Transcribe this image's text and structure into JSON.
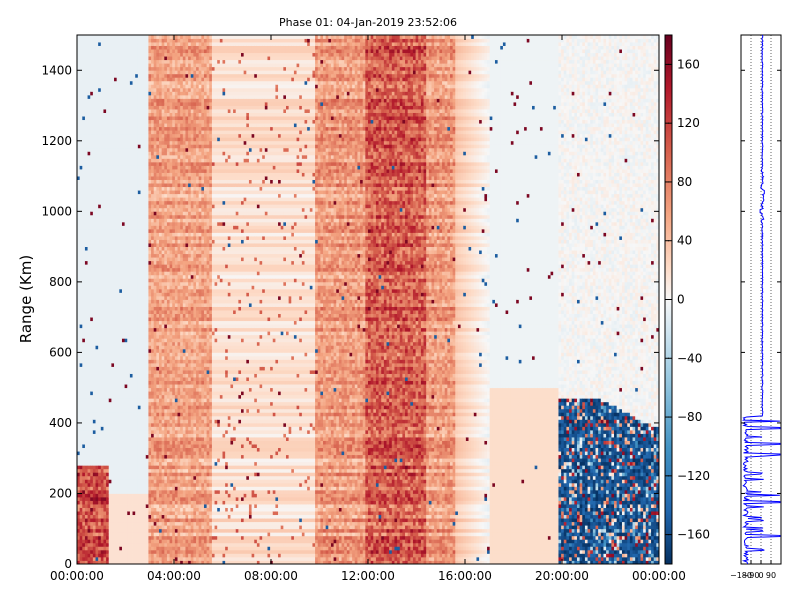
{
  "chart_data": [
    {
      "type": "heatmap",
      "title": "Phase 01: 04-Jan-2019 23:52:06",
      "ylabel": "Range (Km)",
      "xlabel": "",
      "x_tick_labels": [
        "00:00:00",
        "04:00:00",
        "08:00:00",
        "12:00:00",
        "16:00:00",
        "20:00:00",
        "00:00:00"
      ],
      "x_range_hours": [
        0,
        24
      ],
      "y_ticks": [
        0,
        200,
        400,
        600,
        800,
        1000,
        1200,
        1400
      ],
      "ylim": [
        0,
        1500
      ],
      "colormap": "RdBu_r",
      "clim": [
        -180,
        180
      ],
      "colorbar_ticks": [
        "160",
        "120",
        "80",
        "40",
        "0",
        "−40",
        "−80",
        "−120",
        "−160"
      ],
      "colorbar_tick_values": [
        160,
        120,
        80,
        40,
        0,
        -40,
        -80,
        -120,
        -160
      ],
      "regions": [
        {
          "desc": "strong positive band",
          "hours": [
            3,
            5.6
          ],
          "range_km": [
            0,
            1500
          ],
          "level": 70
        },
        {
          "desc": "strong positive band",
          "hours": [
            9.8,
            15.6
          ],
          "range_km": [
            0,
            1500
          ],
          "level": 75
        },
        {
          "desc": "strongest positive column",
          "hours": [
            11.9,
            14.4
          ],
          "range_km": [
            0,
            1500
          ],
          "level": 120
        },
        {
          "desc": "negative block",
          "hours": [
            19.8,
            24
          ],
          "range_km": [
            0,
            470
          ],
          "level": -160
        },
        {
          "desc": "mixed noise",
          "hours": [
            0,
            1.3
          ],
          "range_km": [
            0,
            280
          ],
          "level": 130
        }
      ]
    },
    {
      "type": "line",
      "title": "",
      "x_tick_labels": [
        "−180",
        "−90",
        "0",
        "90"
      ],
      "xlim": [
        -180,
        180
      ],
      "ylim": [
        0,
        1500
      ],
      "grid": true,
      "color": "#0000ff",
      "note": "phase profile vs range, near +10 above 420 km, noisy spikes toward -180 below 420 km"
    }
  ]
}
